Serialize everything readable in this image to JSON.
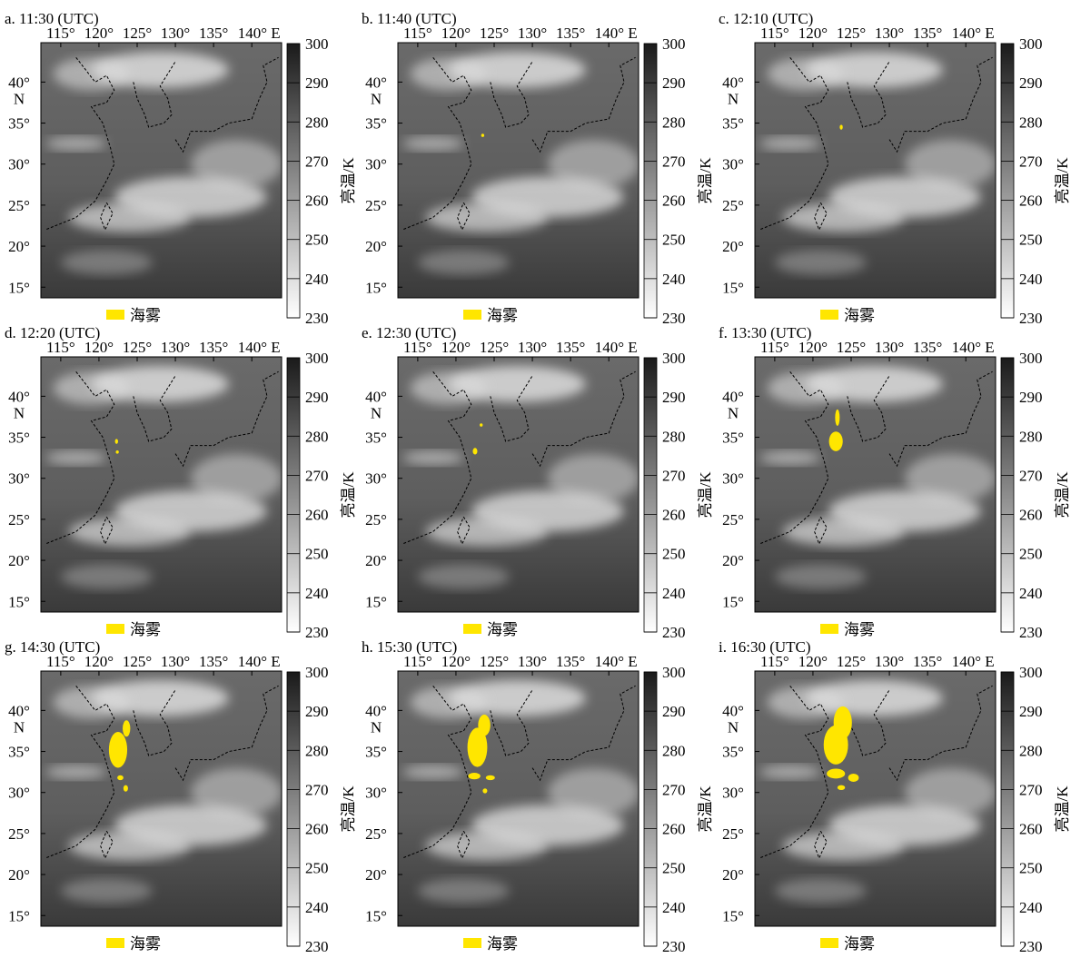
{
  "panels": [
    {
      "title": "a. 11:30 (UTC)"
    },
    {
      "title": "b. 11:40 (UTC)"
    },
    {
      "title": "c. 12:10 (UTC)"
    },
    {
      "title": "d. 12:20 (UTC)"
    },
    {
      "title": "e. 12:30 (UTC)"
    },
    {
      "title": "f. 13:30 (UTC)"
    },
    {
      "title": "g. 14:30 (UTC)"
    },
    {
      "title": "h. 15:30 (UTC)"
    },
    {
      "title": "i. 16:30 (UTC)"
    }
  ],
  "map": {
    "xlim": [
      112.4,
      143.9
    ],
    "ylim": [
      13.7,
      44.8
    ],
    "xticks": [
      {
        "value": 115,
        "label": "115°"
      },
      {
        "value": 120,
        "label": "120°"
      },
      {
        "value": 125,
        "label": "125°"
      },
      {
        "value": 130,
        "label": "130°"
      },
      {
        "value": 135,
        "label": "135°"
      },
      {
        "value": 140,
        "label": "140° E"
      }
    ],
    "yticks": [
      {
        "value": 15,
        "label": "15°"
      },
      {
        "value": 20,
        "label": "20°"
      },
      {
        "value": 25,
        "label": "25°"
      },
      {
        "value": 30,
        "label": "30°"
      },
      {
        "value": 35,
        "label": "35°"
      },
      {
        "value": 40,
        "label": "40°\nN"
      }
    ]
  },
  "colorbar": {
    "label": "亮温/K",
    "lim": [
      230,
      300
    ],
    "ticks": [
      230,
      240,
      250,
      260,
      270,
      280,
      290,
      300
    ]
  },
  "legend": {
    "label": "海雾",
    "color": "#ffe600"
  }
}
